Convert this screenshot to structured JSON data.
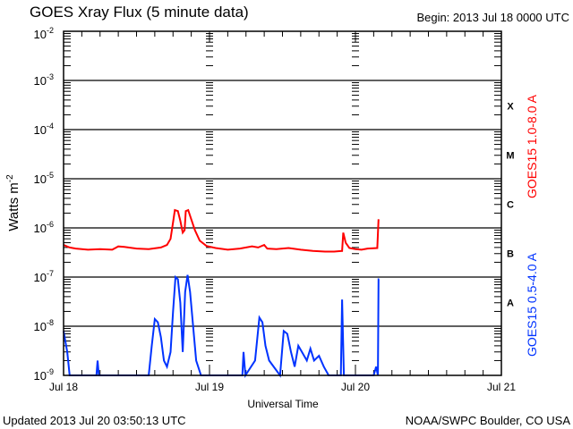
{
  "chart_data": {
    "type": "line",
    "title": "GOES Xray Flux (5 minute data)",
    "subtitle": "Begin:  2013 Jul 18 0000 UTC",
    "xlabel": "Universal Time",
    "ylabel": "Watts m",
    "ylabel_exp": "-2",
    "x_unit": "hours since 2013 Jul 18 0000 UTC",
    "xlim": [
      0,
      72
    ],
    "ylim": [
      1e-09,
      0.01
    ],
    "yscale": "log",
    "x_tick_labels": [
      {
        "hour": 0,
        "label": "Jul 18"
      },
      {
        "hour": 24,
        "label": "Jul 19"
      },
      {
        "hour": 48,
        "label": "Jul 20"
      },
      {
        "hour": 72,
        "label": "Jul 21"
      }
    ],
    "y_tick_exponents": [
      -2,
      -3,
      -4,
      -5,
      -6,
      -7,
      -8,
      -9
    ],
    "y_tick_base": "10",
    "flare_classes": [
      {
        "label": "X",
        "exp": -4
      },
      {
        "label": "M",
        "exp": -5
      },
      {
        "label": "C",
        "exp": -6
      },
      {
        "label": "B",
        "exp": -7
      },
      {
        "label": "A",
        "exp": -8
      }
    ],
    "grid": "horizontal at each decade",
    "series": [
      {
        "name": "GOES15 1.0-8.0 A",
        "color": "#ff0000",
        "points": [
          [
            0,
            4.5e-07
          ],
          [
            1,
            4e-07
          ],
          [
            2,
            3.8e-07
          ],
          [
            4,
            3.6e-07
          ],
          [
            6,
            3.7e-07
          ],
          [
            8,
            3.6e-07
          ],
          [
            9,
            4.2e-07
          ],
          [
            10,
            4.1e-07
          ],
          [
            12,
            3.8e-07
          ],
          [
            14,
            3.7e-07
          ],
          [
            16,
            4e-07
          ],
          [
            17,
            4.5e-07
          ],
          [
            17.6,
            6e-07
          ],
          [
            18,
            1.3e-06
          ],
          [
            18.3,
            2.3e-06
          ],
          [
            18.8,
            2.2e-06
          ],
          [
            19.2,
            1.4e-06
          ],
          [
            19.6,
            8e-07
          ],
          [
            19.9,
            9e-07
          ],
          [
            20.1,
            2.2e-06
          ],
          [
            20.5,
            2.3e-06
          ],
          [
            21,
            1.5e-06
          ],
          [
            21.6,
            9e-07
          ],
          [
            22.4,
            5.5e-07
          ],
          [
            23.5,
            4.3e-07
          ],
          [
            25,
            3.9e-07
          ],
          [
            27,
            3.6e-07
          ],
          [
            29,
            3.8e-07
          ],
          [
            31,
            4.2e-07
          ],
          [
            32,
            4e-07
          ],
          [
            33,
            4.5e-07
          ],
          [
            33.5,
            3.8e-07
          ],
          [
            35,
            3.7e-07
          ],
          [
            37,
            3.9e-07
          ],
          [
            39,
            3.6e-07
          ],
          [
            41,
            3.4e-07
          ],
          [
            43,
            3.3e-07
          ],
          [
            44.5,
            3.3e-07
          ],
          [
            45.8,
            3.4e-07
          ],
          [
            46,
            8e-07
          ],
          [
            46.4,
            5e-07
          ],
          [
            47,
            3.9e-07
          ],
          [
            48,
            3.7e-07
          ],
          [
            49,
            3.6e-07
          ],
          [
            50,
            3.8e-07
          ],
          [
            51.6,
            3.9e-07
          ],
          [
            51.8,
            1.5e-06
          ]
        ]
      },
      {
        "name": "GOES15 0.5-4.0 A",
        "color": "#0033ff",
        "points": [
          [
            0,
            8e-09
          ],
          [
            0.6,
            3e-09
          ],
          [
            1,
            1e-09
          ],
          [
            5.4,
            1e-09
          ],
          [
            5.6,
            2e-09
          ],
          [
            5.8,
            1e-09
          ],
          [
            14,
            1e-09
          ],
          [
            14.5,
            4e-09
          ],
          [
            15,
            1.4e-08
          ],
          [
            15.5,
            1.2e-08
          ],
          [
            16,
            6e-09
          ],
          [
            16.5,
            2e-09
          ],
          [
            17,
            1.5e-09
          ],
          [
            17.6,
            3e-09
          ],
          [
            18,
            2e-08
          ],
          [
            18.4,
            1e-07
          ],
          [
            18.8,
            9e-08
          ],
          [
            19.2,
            3e-08
          ],
          [
            19.6,
            3e-09
          ],
          [
            20,
            5e-08
          ],
          [
            20.4,
            1.1e-07
          ],
          [
            20.8,
            5e-08
          ],
          [
            21.3,
            1e-08
          ],
          [
            21.8,
            2e-09
          ],
          [
            22.6,
            1e-09
          ],
          [
            29.4,
            1e-09
          ],
          [
            29.6,
            3e-09
          ],
          [
            29.9,
            1e-09
          ],
          [
            31.5,
            2e-09
          ],
          [
            32.2,
            1.5e-08
          ],
          [
            32.7,
            1.2e-08
          ],
          [
            33.2,
            4e-09
          ],
          [
            33.8,
            2e-09
          ],
          [
            35.6,
            1e-09
          ],
          [
            36.2,
            8e-09
          ],
          [
            36.8,
            7e-09
          ],
          [
            37.4,
            3e-09
          ],
          [
            38,
            1.5e-09
          ],
          [
            38.6,
            4e-09
          ],
          [
            39.2,
            3e-09
          ],
          [
            40,
            2e-09
          ],
          [
            40.6,
            3.5e-09
          ],
          [
            41.2,
            2e-09
          ],
          [
            42,
            2.5e-09
          ],
          [
            42.8,
            1.5e-09
          ],
          [
            43.6,
            1e-09
          ],
          [
            45.6,
            1e-09
          ],
          [
            45.8,
            3.5e-08
          ],
          [
            46.1,
            1e-09
          ],
          [
            51,
            1e-09
          ],
          [
            51.4,
            1.5e-09
          ],
          [
            51.7,
            1e-09
          ],
          [
            51.8,
            9e-08
          ],
          [
            51.9,
            9e-08
          ]
        ]
      }
    ]
  },
  "footer": {
    "updated": "Updated 2013 Jul 20 03:50:13 UTC",
    "credit": "NOAA/SWPC Boulder, CO USA"
  }
}
